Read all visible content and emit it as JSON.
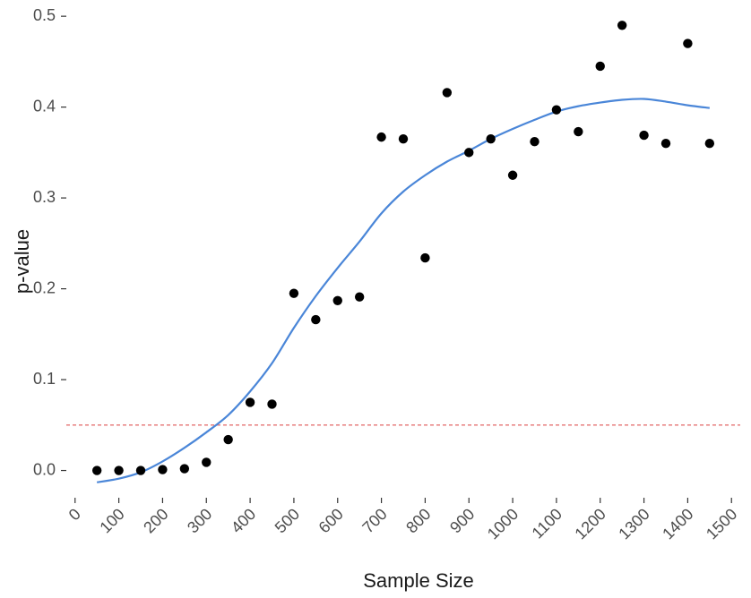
{
  "chart_data": {
    "type": "scatter",
    "title": "",
    "xlabel": "Sample Size",
    "ylabel": "p-value",
    "xlim": [
      -20,
      1520
    ],
    "ylim": [
      -0.03,
      0.51
    ],
    "x_ticks": [
      0,
      100,
      200,
      300,
      400,
      500,
      600,
      700,
      800,
      900,
      1000,
      1100,
      1200,
      1300,
      1400,
      1500
    ],
    "y_ticks": [
      0.0,
      0.1,
      0.2,
      0.3,
      0.4,
      0.5
    ],
    "x_tick_labels": [
      "0",
      "100",
      "200",
      "300",
      "400",
      "500",
      "600",
      "700",
      "800",
      "900",
      "1000",
      "1100",
      "1200",
      "1300",
      "1400",
      "1500"
    ],
    "y_tick_labels": [
      "0.0",
      "0.1",
      "0.2",
      "0.3",
      "0.4",
      "0.5"
    ],
    "grid": false,
    "legend": "none",
    "reference_line": {
      "y": 0.05,
      "style": "dashed",
      "color": "#e57373"
    },
    "points": {
      "x": [
        50,
        100,
        150,
        200,
        250,
        300,
        350,
        400,
        450,
        500,
        550,
        600,
        650,
        700,
        750,
        800,
        850,
        900,
        950,
        1000,
        1050,
        1100,
        1150,
        1200,
        1250,
        1300,
        1350,
        1400,
        1450
      ],
      "y": [
        0.0,
        0.0,
        0.0,
        0.001,
        0.002,
        0.009,
        0.034,
        0.075,
        0.073,
        0.195,
        0.166,
        0.187,
        0.191,
        0.367,
        0.365,
        0.234,
        0.416,
        0.35,
        0.365,
        0.325,
        0.362,
        0.397,
        0.373,
        0.445,
        0.49,
        0.369,
        0.36,
        0.47,
        0.36
      ],
      "color": "#000000"
    },
    "smooth_line": {
      "x": [
        50,
        100,
        150,
        200,
        250,
        300,
        350,
        400,
        450,
        500,
        550,
        600,
        650,
        700,
        750,
        800,
        850,
        900,
        950,
        1000,
        1050,
        1100,
        1150,
        1200,
        1250,
        1300,
        1350,
        1400,
        1450
      ],
      "y": [
        -0.013,
        -0.009,
        -0.002,
        0.01,
        0.025,
        0.042,
        0.061,
        0.087,
        0.118,
        0.157,
        0.192,
        0.223,
        0.252,
        0.283,
        0.307,
        0.325,
        0.34,
        0.352,
        0.365,
        0.376,
        0.386,
        0.395,
        0.401,
        0.405,
        0.408,
        0.409,
        0.406,
        0.402,
        0.399
      ],
      "color": "#4a86d8"
    }
  }
}
